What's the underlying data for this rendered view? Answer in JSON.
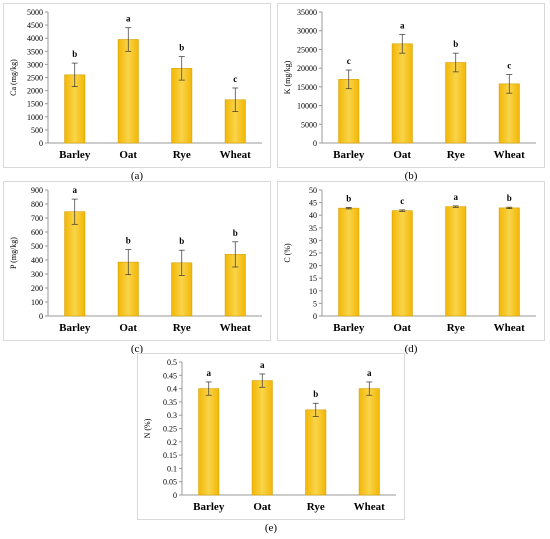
{
  "figure": {
    "colors": {
      "bar_fill": "#f2b705",
      "bar_highlight": "#f9d44a",
      "bar_stroke": "#d79f00",
      "axis": "#9a9a9a",
      "error": "#333333",
      "panel_border": "#d9d9d9"
    }
  },
  "chart_data": [
    {
      "id": "a",
      "type": "bar",
      "caption": "(a)",
      "ylabel": "Ca (mg/kg)",
      "categories": [
        "Barley",
        "Oat",
        "Rye",
        "Wheat"
      ],
      "values": [
        2600,
        3950,
        2850,
        1650
      ],
      "errors": [
        450,
        450,
        450,
        450
      ],
      "letters": [
        "b",
        "a",
        "b",
        "c"
      ],
      "ylim": [
        0,
        5000
      ],
      "yticks": [
        "0",
        "500",
        "1000",
        "1500",
        "2000",
        "2500",
        "3000",
        "3500",
        "4000",
        "4500",
        "5000"
      ],
      "grid": false
    },
    {
      "id": "b",
      "type": "bar",
      "caption": "(b)",
      "ylabel": "K (mg/kg)",
      "categories": [
        "Barley",
        "Oat",
        "Rye",
        "Wheat"
      ],
      "values": [
        17000,
        26500,
        21500,
        15800
      ],
      "errors": [
        2500,
        2500,
        2500,
        2500
      ],
      "letters": [
        "c",
        "a",
        "b",
        "c"
      ],
      "ylim": [
        0,
        35000
      ],
      "yticks": [
        "0",
        "5000",
        "10000",
        "15000",
        "20000",
        "25000",
        "30000",
        "35000"
      ],
      "grid": false
    },
    {
      "id": "c",
      "type": "bar",
      "caption": "(c)",
      "ylabel": "P (mg/kg)",
      "categories": [
        "Barley",
        "Oat",
        "Rye",
        "Wheat"
      ],
      "values": [
        745,
        385,
        380,
        440
      ],
      "errors": [
        90,
        90,
        90,
        90
      ],
      "letters": [
        "a",
        "b",
        "b",
        "b"
      ],
      "ylim": [
        0,
        900
      ],
      "yticks": [
        "0",
        "100",
        "200",
        "300",
        "400",
        "500",
        "600",
        "700",
        "800",
        "900"
      ],
      "grid": false
    },
    {
      "id": "d",
      "type": "bar",
      "caption": "(d)",
      "ylabel": "C (%)",
      "categories": [
        "Barley",
        "Oat",
        "Rye",
        "Wheat"
      ],
      "values": [
        42.8,
        41.8,
        43.4,
        42.9
      ],
      "errors": [
        0.3,
        0.3,
        0.3,
        0.3
      ],
      "letters": [
        "b",
        "c",
        "a",
        "b"
      ],
      "ylim": [
        0,
        50
      ],
      "yticks": [
        "0",
        "5",
        "10",
        "15",
        "20",
        "25",
        "30",
        "35",
        "40",
        "45",
        "50"
      ],
      "grid": false
    },
    {
      "id": "e",
      "type": "bar",
      "caption": "(e)",
      "ylabel": "N (%)",
      "categories": [
        "Barley",
        "Oat",
        "Rye",
        "Wheat"
      ],
      "values": [
        0.4,
        0.43,
        0.32,
        0.4
      ],
      "errors": [
        0.025,
        0.025,
        0.025,
        0.025
      ],
      "letters": [
        "a",
        "a",
        "b",
        "a"
      ],
      "ylim": [
        0,
        0.5
      ],
      "yticks": [
        "0",
        "0.05",
        "0.1",
        "0.15",
        "0.2",
        "0.25",
        "0.3",
        "0.35",
        "0.4",
        "0.45",
        "0.5"
      ],
      "grid": false
    }
  ]
}
